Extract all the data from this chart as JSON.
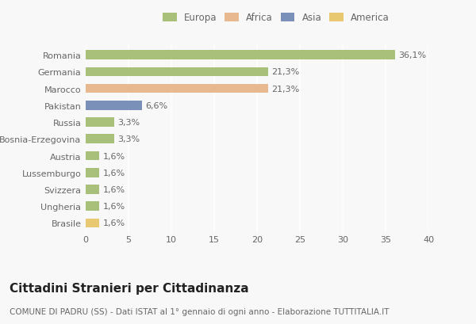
{
  "categories": [
    "Romania",
    "Germania",
    "Marocco",
    "Pakistan",
    "Russia",
    "Bosnia-Erzegovina",
    "Austria",
    "Lussemburgo",
    "Svizzera",
    "Ungheria",
    "Brasile"
  ],
  "values": [
    36.1,
    21.3,
    21.3,
    6.6,
    3.3,
    3.3,
    1.6,
    1.6,
    1.6,
    1.6,
    1.6
  ],
  "labels": [
    "36,1%",
    "21,3%",
    "21,3%",
    "6,6%",
    "3,3%",
    "3,3%",
    "1,6%",
    "1,6%",
    "1,6%",
    "1,6%",
    "1,6%"
  ],
  "colors": [
    "#a8c07a",
    "#a8c07a",
    "#e8b890",
    "#7b90b8",
    "#a8c07a",
    "#a8c07a",
    "#a8c07a",
    "#a8c07a",
    "#a8c07a",
    "#a8c07a",
    "#e8c870"
  ],
  "legend_labels": [
    "Europa",
    "Africa",
    "Asia",
    "America"
  ],
  "legend_colors": [
    "#a8c07a",
    "#e8b890",
    "#7b90b8",
    "#e8c870"
  ],
  "xlim": [
    0,
    40
  ],
  "xticks": [
    0,
    5,
    10,
    15,
    20,
    25,
    30,
    35,
    40
  ],
  "title": "Cittadini Stranieri per Cittadinanza",
  "subtitle": "COMUNE DI PADRU (SS) - Dati ISTAT al 1° gennaio di ogni anno - Elaborazione TUTTITALIA.IT",
  "bg_color": "#f8f8f8",
  "bar_height": 0.55,
  "title_fontsize": 11,
  "subtitle_fontsize": 7.5,
  "label_fontsize": 8,
  "tick_fontsize": 8,
  "legend_fontsize": 8.5
}
